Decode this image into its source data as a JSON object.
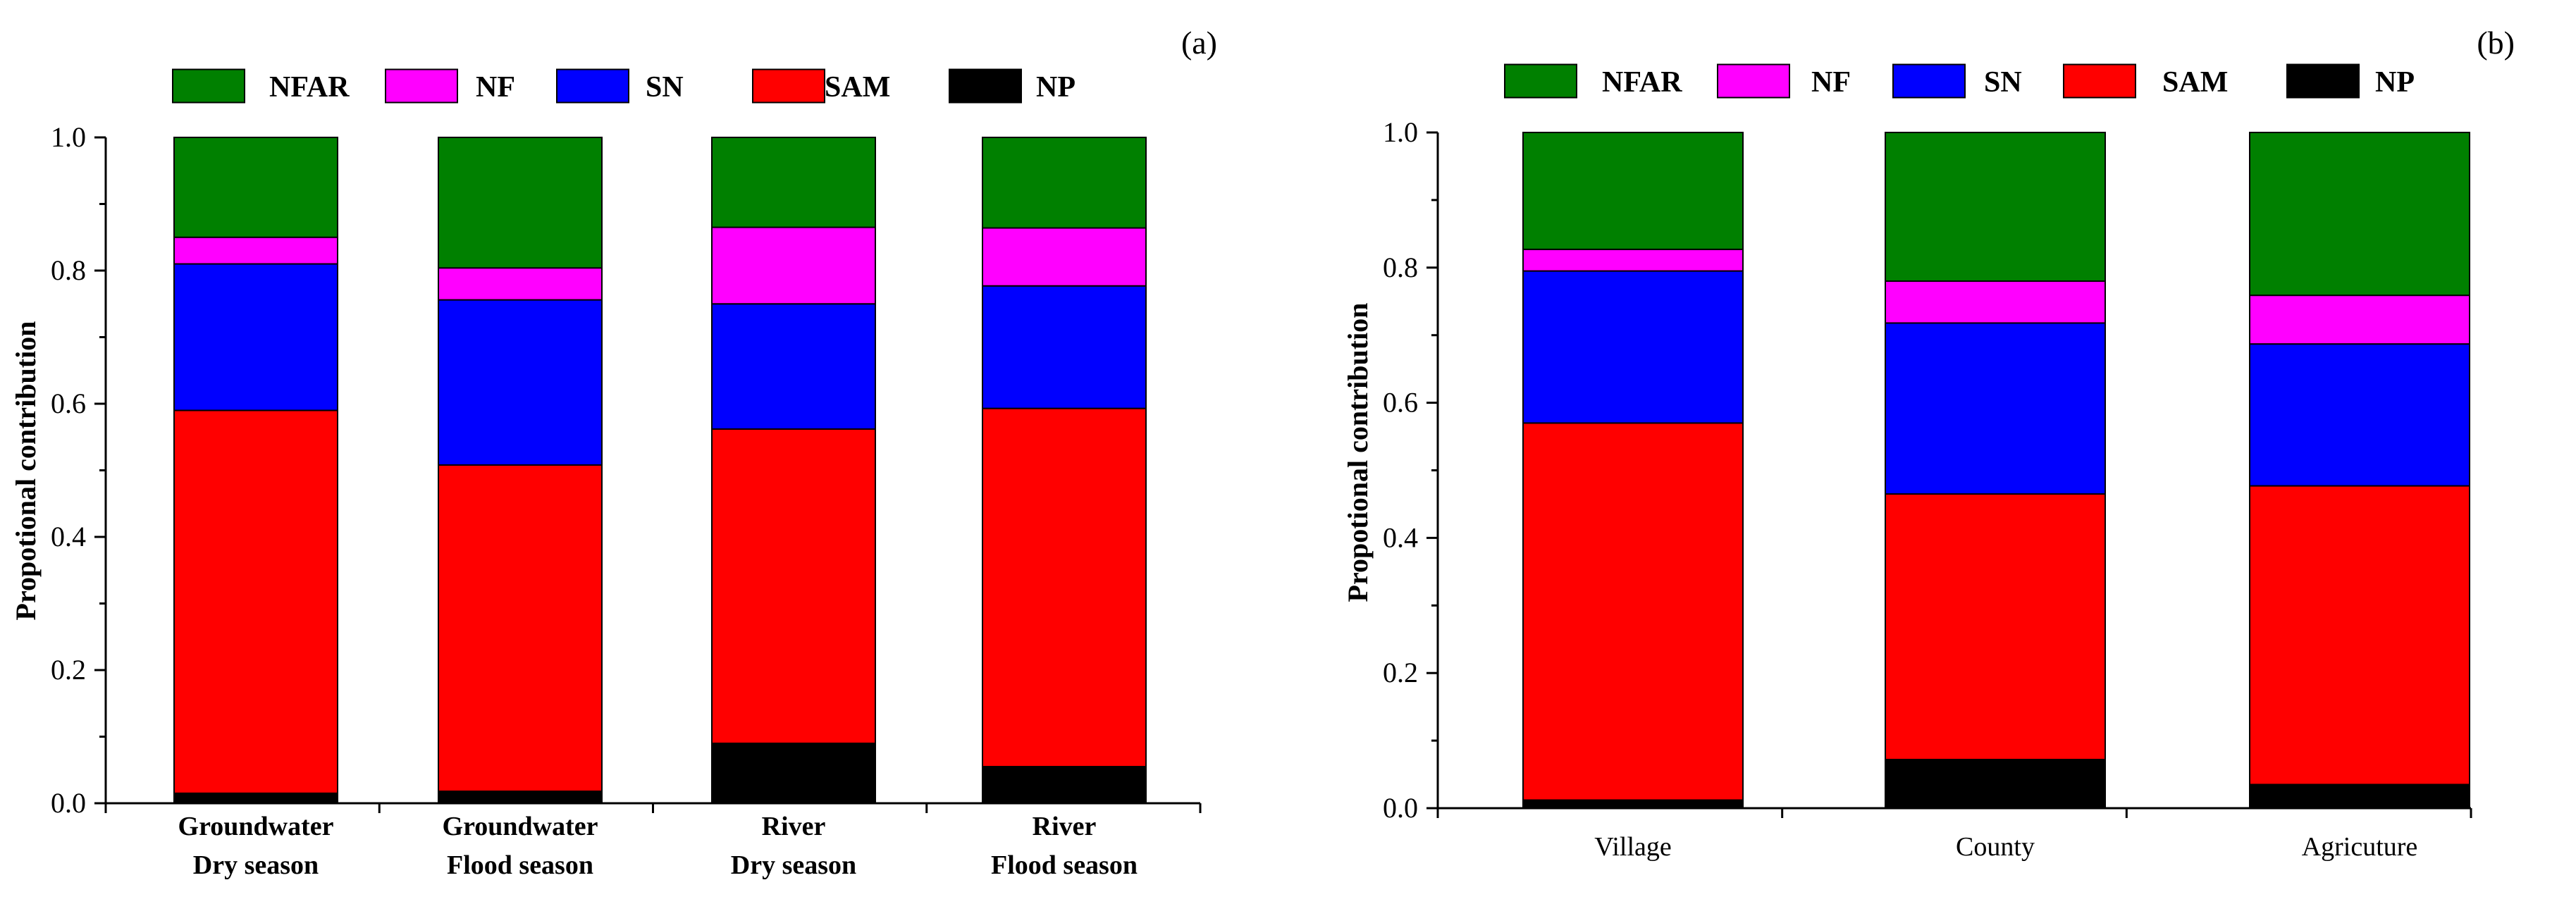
{
  "chart_data": [
    {
      "type": "bar",
      "stacked": true,
      "panel_label": "(a)",
      "categories": [
        [
          "Groundwater",
          "Dry season"
        ],
        [
          "Groundwater",
          "Flood season"
        ],
        [
          "River",
          "Dry season"
        ],
        [
          "River",
          "Flood season"
        ]
      ],
      "category_label_bold": true,
      "series": [
        {
          "name": "NP",
          "color": "#000000",
          "values": [
            0.015,
            0.018,
            0.09,
            0.055
          ]
        },
        {
          "name": "SAM",
          "color": "#ff0000",
          "values": [
            0.575,
            0.49,
            0.472,
            0.538
          ]
        },
        {
          "name": "SN",
          "color": "#0000ff",
          "values": [
            0.22,
            0.248,
            0.188,
            0.184
          ]
        },
        {
          "name": "NF",
          "color": "#ff00ff",
          "values": [
            0.04,
            0.048,
            0.115,
            0.087
          ]
        },
        {
          "name": "NFAR",
          "color": "#008000",
          "values": [
            0.15,
            0.196,
            0.135,
            0.136
          ]
        }
      ],
      "legend": [
        "NFAR",
        "NF",
        "SN",
        "SAM",
        "NP"
      ],
      "legend_position": "top",
      "title": "",
      "xlabel": "",
      "ylabel": "Propotional contribution",
      "ylim": [
        0,
        1.0
      ],
      "yticks": [
        "0.0",
        "0.2",
        "0.4",
        "0.6",
        "0.8",
        "1.0"
      ],
      "grid": false
    },
    {
      "type": "bar",
      "stacked": true,
      "panel_label": "(b)",
      "categories": [
        [
          "Village"
        ],
        [
          "County"
        ],
        [
          "Agricuture"
        ]
      ],
      "category_label_bold": false,
      "series": [
        {
          "name": "NP",
          "color": "#000000",
          "values": [
            0.012,
            0.072,
            0.035
          ]
        },
        {
          "name": "SAM",
          "color": "#ff0000",
          "values": [
            0.558,
            0.393,
            0.442
          ]
        },
        {
          "name": "SN",
          "color": "#0000ff",
          "values": [
            0.225,
            0.253,
            0.21
          ]
        },
        {
          "name": "NF",
          "color": "#ff00ff",
          "values": [
            0.032,
            0.062,
            0.072
          ]
        },
        {
          "name": "NFAR",
          "color": "#008000",
          "values": [
            0.173,
            0.22,
            0.241
          ]
        }
      ],
      "legend": [
        "NFAR",
        "NF",
        "SN",
        "SAM",
        "NP"
      ],
      "legend_position": "top",
      "title": "",
      "xlabel": "",
      "ylabel": "Propotional contribution",
      "ylim": [
        0,
        1.0
      ],
      "yticks": [
        "0.0",
        "0.2",
        "0.4",
        "0.6",
        "0.8",
        "1.0"
      ],
      "grid": false
    }
  ]
}
